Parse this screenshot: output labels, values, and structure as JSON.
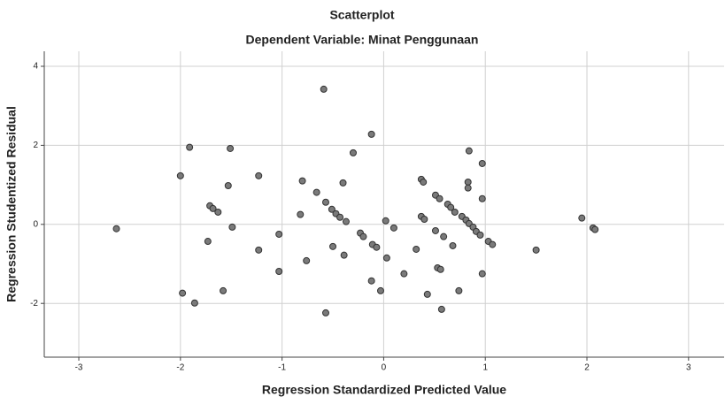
{
  "chart_data": {
    "type": "scatter",
    "title": "Scatterplot",
    "subtitle": "Dependent Variable: Minat Penggunaan",
    "x_label": "Regression Standardized Predicted Value",
    "y_label": "Regression Studentized Residual",
    "x": [
      -2.63,
      -1.91,
      -2.0,
      -1.98,
      -1.86,
      -1.51,
      -1.53,
      -1.71,
      -1.68,
      -1.63,
      -1.49,
      -1.73,
      -1.58,
      -1.23,
      -1.23,
      -1.03,
      -1.03,
      -0.8,
      -0.82,
      -0.76,
      -0.59,
      -0.66,
      -0.57,
      -0.51,
      -0.47,
      -0.43,
      -0.37,
      -0.5,
      -0.39,
      -0.57,
      -0.3,
      -0.4,
      -0.23,
      -0.2,
      -0.11,
      -0.07,
      -0.12,
      -0.12,
      -0.03,
      0.02,
      0.03,
      0.1,
      0.2,
      0.32,
      0.37,
      0.4,
      0.37,
      0.39,
      0.43,
      0.51,
      0.55,
      0.51,
      0.59,
      0.53,
      0.56,
      0.57,
      0.63,
      0.66,
      0.7,
      0.68,
      0.74,
      0.77,
      0.81,
      0.84,
      0.88,
      0.91,
      0.95,
      0.84,
      0.83,
      0.83,
      0.97,
      0.97,
      0.97,
      1.03,
      1.07,
      1.5,
      1.95,
      2.06,
      2.08
    ],
    "y": [
      -0.11,
      1.95,
      1.23,
      -1.74,
      -1.99,
      1.92,
      0.98,
      0.47,
      0.4,
      0.31,
      -0.07,
      -0.43,
      -1.68,
      1.23,
      -0.65,
      -0.25,
      -1.19,
      1.1,
      0.25,
      -0.92,
      3.42,
      0.81,
      0.56,
      0.38,
      0.27,
      0.18,
      0.07,
      -0.56,
      -0.78,
      -2.24,
      1.81,
      1.05,
      -0.22,
      -0.31,
      -0.51,
      -0.58,
      2.28,
      -1.43,
      -1.68,
      0.09,
      -0.85,
      -0.09,
      -1.25,
      -0.63,
      0.2,
      0.13,
      1.14,
      1.07,
      -1.77,
      0.74,
      0.65,
      -0.16,
      -0.31,
      -1.1,
      -1.14,
      -2.15,
      0.51,
      0.43,
      0.31,
      -0.54,
      -1.68,
      0.2,
      0.11,
      0.02,
      -0.07,
      -0.18,
      -0.27,
      1.86,
      1.07,
      0.92,
      1.54,
      0.65,
      -1.25,
      -0.43,
      -0.51,
      -0.65,
      0.16,
      -0.09,
      -0.13
    ],
    "color": "#7a7a7a",
    "xlim": [
      -3.34,
      3.35
    ],
    "ylim": [
      -3.36,
      4.38
    ],
    "xticks": [
      -3,
      -2,
      -1,
      0,
      1,
      2,
      3
    ],
    "yticks": [
      -2,
      0,
      2,
      4
    ],
    "grid": true
  }
}
